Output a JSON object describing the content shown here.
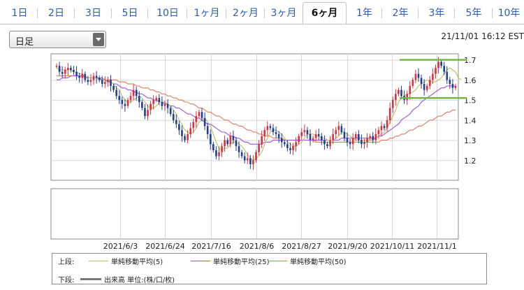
{
  "tabs": [
    {
      "label": "1日"
    },
    {
      "label": "2日"
    },
    {
      "label": "3日"
    },
    {
      "label": "5日"
    },
    {
      "label": "10日"
    },
    {
      "label": "1ヶ月"
    },
    {
      "label": "2ヶ月"
    },
    {
      "label": "3ヶ月"
    },
    {
      "label": "6ヶ月",
      "active": true
    },
    {
      "label": "1年"
    },
    {
      "label": "2年"
    },
    {
      "label": "3年"
    },
    {
      "label": "5年"
    },
    {
      "label": "10年"
    }
  ],
  "period_select": {
    "value": "日足"
  },
  "timestamp": "21/11/01 16:12 EST",
  "legend": {
    "upper_label": "上段:",
    "lower_label": "下段:",
    "ma5": "単純移動平均(5)",
    "ma25": "単純移動平均(25)",
    "ma50": "単純移動平均(50)",
    "volume": "出来高 単位:(株/口/枚)"
  },
  "colors": {
    "up": "#d9303e",
    "down": "#1f3f8f",
    "ma5": "#b8c25c",
    "ma25": "#a64fe0",
    "ma50": "#e07a5a",
    "guide": "#71b848"
  },
  "chart_data": {
    "type": "candlestick",
    "y_ticks": [
      1.2,
      1.3,
      1.4,
      1.5,
      1.6,
      1.7
    ],
    "y_range": [
      1.1,
      1.73
    ],
    "x_ticks": [
      "2021/6/3",
      "2021/6/24",
      "2021/7/16",
      "2021/8/6",
      "2021/8/27",
      "2021/9/20",
      "2021/10/11",
      "2021/11/1"
    ],
    "horizontal_guides": [
      1.7,
      1.51
    ],
    "close": [
      1.67,
      1.64,
      1.63,
      1.65,
      1.66,
      1.65,
      1.64,
      1.62,
      1.61,
      1.63,
      1.6,
      1.59,
      1.6,
      1.62,
      1.61,
      1.6,
      1.58,
      1.59,
      1.6,
      1.57,
      1.55,
      1.52,
      1.5,
      1.48,
      1.47,
      1.5,
      1.52,
      1.55,
      1.52,
      1.49,
      1.46,
      1.42,
      1.45,
      1.48,
      1.5,
      1.51,
      1.49,
      1.47,
      1.48,
      1.46,
      1.43,
      1.4,
      1.38,
      1.35,
      1.32,
      1.3,
      1.33,
      1.36,
      1.39,
      1.42,
      1.44,
      1.41,
      1.37,
      1.33,
      1.28,
      1.25,
      1.22,
      1.24,
      1.27,
      1.3,
      1.28,
      1.32,
      1.3,
      1.27,
      1.24,
      1.22,
      1.2,
      1.21,
      1.18,
      1.2,
      1.24,
      1.28,
      1.32,
      1.35,
      1.37,
      1.36,
      1.34,
      1.33,
      1.31,
      1.29,
      1.28,
      1.26,
      1.25,
      1.27,
      1.29,
      1.32,
      1.34,
      1.35,
      1.33,
      1.3,
      1.31,
      1.33,
      1.32,
      1.3,
      1.28,
      1.27,
      1.3,
      1.33,
      1.35,
      1.37,
      1.34,
      1.31,
      1.29,
      1.28,
      1.31,
      1.33,
      1.3,
      1.28,
      1.29,
      1.31,
      1.32,
      1.3,
      1.33,
      1.35,
      1.37,
      1.36,
      1.4,
      1.46,
      1.5,
      1.53,
      1.55,
      1.52,
      1.5,
      1.53,
      1.57,
      1.6,
      1.63,
      1.61,
      1.58,
      1.55,
      1.57,
      1.6,
      1.63,
      1.66,
      1.69,
      1.67,
      1.64,
      1.6,
      1.58,
      1.56,
      1.57
    ],
    "ma5": [
      1.66,
      1.65,
      1.65,
      1.65,
      1.65,
      1.65,
      1.64,
      1.64,
      1.63,
      1.63,
      1.62,
      1.61,
      1.61,
      1.61,
      1.61,
      1.6,
      1.6,
      1.6,
      1.6,
      1.59,
      1.58,
      1.56,
      1.55,
      1.52,
      1.5,
      1.49,
      1.49,
      1.5,
      1.51,
      1.52,
      1.51,
      1.49,
      1.47,
      1.46,
      1.46,
      1.47,
      1.49,
      1.49,
      1.49,
      1.48,
      1.47,
      1.45,
      1.43,
      1.4,
      1.38,
      1.35,
      1.34,
      1.33,
      1.34,
      1.36,
      1.39,
      1.4,
      1.41,
      1.39,
      1.37,
      1.33,
      1.29,
      1.26,
      1.25,
      1.26,
      1.26,
      1.28,
      1.29,
      1.29,
      1.28,
      1.27,
      1.25,
      1.23,
      1.21,
      1.2,
      1.21,
      1.22,
      1.24,
      1.28,
      1.31,
      1.34,
      1.35,
      1.35,
      1.34,
      1.33,
      1.31,
      1.29,
      1.28,
      1.27,
      1.27,
      1.28,
      1.29,
      1.31,
      1.33,
      1.33,
      1.33,
      1.32,
      1.32,
      1.31,
      1.31,
      1.3,
      1.3,
      1.3,
      1.31,
      1.32,
      1.34,
      1.34,
      1.33,
      1.32,
      1.31,
      1.3,
      1.3,
      1.3,
      1.3,
      1.3,
      1.3,
      1.3,
      1.31,
      1.32,
      1.33,
      1.34,
      1.36,
      1.39,
      1.42,
      1.45,
      1.49,
      1.51,
      1.52,
      1.53,
      1.53,
      1.54,
      1.55,
      1.57,
      1.58,
      1.59,
      1.6,
      1.59,
      1.59,
      1.59,
      1.6,
      1.61,
      1.63,
      1.65,
      1.66,
      1.65,
      1.64,
      1.61,
      1.6
    ],
    "ma25": [
      1.6,
      1.6,
      1.61,
      1.61,
      1.61,
      1.62,
      1.62,
      1.62,
      1.62,
      1.62,
      1.62,
      1.61,
      1.61,
      1.61,
      1.61,
      1.61,
      1.6,
      1.6,
      1.59,
      1.59,
      1.58,
      1.58,
      1.57,
      1.56,
      1.56,
      1.55,
      1.55,
      1.54,
      1.54,
      1.53,
      1.53,
      1.52,
      1.51,
      1.51,
      1.5,
      1.5,
      1.49,
      1.49,
      1.48,
      1.48,
      1.47,
      1.47,
      1.46,
      1.46,
      1.45,
      1.44,
      1.43,
      1.43,
      1.42,
      1.41,
      1.41,
      1.4,
      1.39,
      1.38,
      1.38,
      1.37,
      1.36,
      1.35,
      1.34,
      1.34,
      1.33,
      1.32,
      1.32,
      1.31,
      1.31,
      1.3,
      1.29,
      1.29,
      1.28,
      1.28,
      1.28,
      1.28,
      1.28,
      1.29,
      1.29,
      1.29,
      1.3,
      1.3,
      1.3,
      1.3,
      1.3,
      1.3,
      1.3,
      1.3,
      1.3,
      1.3,
      1.3,
      1.3,
      1.3,
      1.3,
      1.3,
      1.3,
      1.3,
      1.3,
      1.3,
      1.3,
      1.3,
      1.3,
      1.3,
      1.3,
      1.31,
      1.31,
      1.31,
      1.31,
      1.31,
      1.31,
      1.31,
      1.31,
      1.31,
      1.31,
      1.31,
      1.31,
      1.31,
      1.32,
      1.32,
      1.33,
      1.34,
      1.35,
      1.36,
      1.37,
      1.38,
      1.4,
      1.41,
      1.42,
      1.43,
      1.45,
      1.46,
      1.47,
      1.49,
      1.5,
      1.51,
      1.52,
      1.53,
      1.54,
      1.55,
      1.56,
      1.56,
      1.57,
      1.57,
      1.57,
      1.57
    ],
    "ma50": [
      1.62,
      1.62,
      1.62,
      1.62,
      1.62,
      1.62,
      1.62,
      1.62,
      1.62,
      1.62,
      1.61,
      1.61,
      1.61,
      1.61,
      1.61,
      1.61,
      1.61,
      1.6,
      1.6,
      1.6,
      1.6,
      1.6,
      1.59,
      1.59,
      1.59,
      1.58,
      1.58,
      1.58,
      1.57,
      1.57,
      1.56,
      1.56,
      1.56,
      1.55,
      1.55,
      1.54,
      1.54,
      1.53,
      1.53,
      1.52,
      1.52,
      1.51,
      1.51,
      1.5,
      1.5,
      1.49,
      1.49,
      1.48,
      1.48,
      1.47,
      1.46,
      1.46,
      1.45,
      1.44,
      1.44,
      1.43,
      1.42,
      1.42,
      1.41,
      1.4,
      1.4,
      1.39,
      1.38,
      1.38,
      1.37,
      1.37,
      1.36,
      1.35,
      1.35,
      1.34,
      1.34,
      1.33,
      1.33,
      1.32,
      1.32,
      1.32,
      1.31,
      1.31,
      1.31,
      1.31,
      1.3,
      1.3,
      1.3,
      1.3,
      1.3,
      1.3,
      1.3,
      1.3,
      1.3,
      1.3,
      1.3,
      1.29,
      1.29,
      1.29,
      1.29,
      1.29,
      1.29,
      1.29,
      1.29,
      1.29,
      1.29,
      1.29,
      1.29,
      1.29,
      1.29,
      1.29,
      1.29,
      1.29,
      1.29,
      1.29,
      1.29,
      1.29,
      1.29,
      1.29,
      1.3,
      1.3,
      1.3,
      1.31,
      1.31,
      1.32,
      1.32,
      1.33,
      1.33,
      1.34,
      1.35,
      1.35,
      1.36,
      1.37,
      1.37,
      1.38,
      1.39,
      1.4,
      1.4,
      1.41,
      1.42,
      1.42,
      1.43,
      1.44,
      1.44,
      1.45,
      1.45
    ]
  }
}
